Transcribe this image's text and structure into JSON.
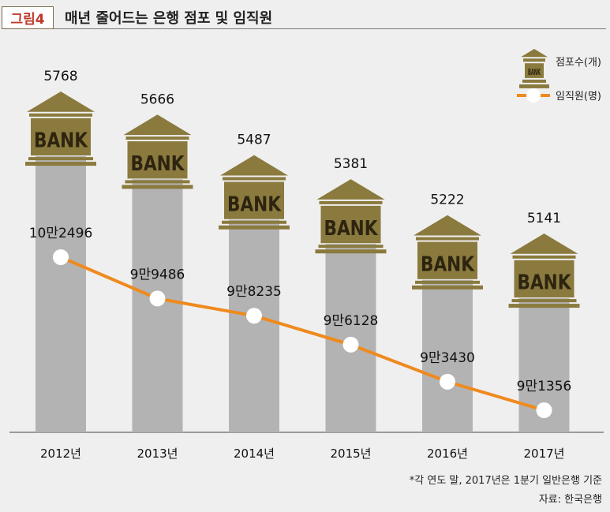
{
  "figure_label": "그림4",
  "title": "매년 줄어드는 은행 점포 및 임직원",
  "footnote": "*각 연도 말, 2017년은 1분기 일반은행 기준",
  "source": "자료: 한국은행",
  "colors": {
    "pillar": "#b3b3b3",
    "bank_icon": "#8a7a3e",
    "line": "#ef8a1e",
    "marker": "#ffffff"
  },
  "chart_data": {
    "type": "bar",
    "categories": [
      "2012년",
      "2013년",
      "2014년",
      "2015년",
      "2016년",
      "2017년"
    ],
    "series": [
      {
        "name": "점포수(개)",
        "type": "bar",
        "values": [
          5768,
          5666,
          5487,
          5381,
          5222,
          5141
        ],
        "labels": [
          "5768",
          "5666",
          "5487",
          "5381",
          "5222",
          "5141"
        ],
        "icon": "bank-building-icon"
      },
      {
        "name": "임직원(명)",
        "type": "line",
        "values": [
          102496,
          99486,
          98235,
          96128,
          93430,
          91356
        ],
        "labels": [
          "10만2496",
          "9만9486",
          "9만8235",
          "9만6128",
          "9만3430",
          "9만1356"
        ]
      }
    ],
    "legend": {
      "placement": "top-right"
    },
    "grid": false
  }
}
